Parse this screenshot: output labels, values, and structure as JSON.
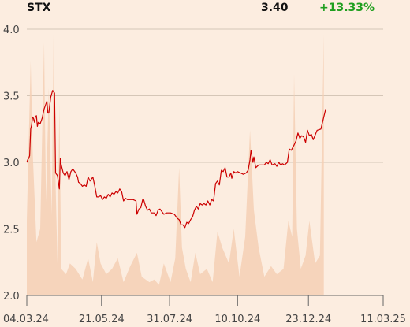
{
  "header": {
    "ticker": "STX",
    "last_price": "3.40",
    "change": "+13.33%"
  },
  "colors": {
    "background": "#fcede0",
    "price_line": "#cc0000",
    "volume_fill": "#f5cfb4",
    "grid": "#c8b8aa",
    "change_positive": "#1e9e1e"
  },
  "chart_data": {
    "type": "line",
    "title": "",
    "xlabel": "",
    "ylabel": "",
    "ylim": [
      2.0,
      4.0
    ],
    "yticks": [
      "4.0",
      "3.5",
      "3.0",
      "2.5",
      "2.0"
    ],
    "xlim": [
      "2024-03-04",
      "2025-03-11"
    ],
    "xticks": [
      {
        "date": "2024-03-04",
        "label": "04.03.24"
      },
      {
        "date": "2024-05-21",
        "label": "21.05.24"
      },
      {
        "date": "2024-07-31",
        "label": "31.07.24"
      },
      {
        "date": "2024-10-10",
        "label": "10.10.24"
      },
      {
        "date": "2024-12-23",
        "label": "23.12.24"
      },
      {
        "date": "2025-03-11",
        "label": "11.03.25"
      }
    ],
    "grid": true,
    "series": [
      {
        "kind": "price",
        "points": [
          [
            "2024-03-04",
            3.0
          ],
          [
            "2024-03-05",
            3.02
          ],
          [
            "2024-03-06",
            3.03
          ],
          [
            "2024-03-07",
            3.05
          ],
          [
            "2024-03-08",
            3.25
          ],
          [
            "2024-03-09",
            3.28
          ],
          [
            "2024-03-10",
            3.34
          ],
          [
            "2024-03-11",
            3.33
          ],
          [
            "2024-03-12",
            3.3
          ],
          [
            "2024-03-13",
            3.34
          ],
          [
            "2024-03-14",
            3.35
          ],
          [
            "2024-03-15",
            3.27
          ],
          [
            "2024-03-16",
            3.3
          ],
          [
            "2024-03-18",
            3.29
          ],
          [
            "2024-03-20",
            3.33
          ],
          [
            "2024-03-22",
            3.4
          ],
          [
            "2024-03-25",
            3.46
          ],
          [
            "2024-03-26",
            3.37
          ],
          [
            "2024-03-27",
            3.37
          ],
          [
            "2024-03-29",
            3.49
          ],
          [
            "2024-03-31",
            3.54
          ],
          [
            "2024-04-02",
            3.52
          ],
          [
            "2024-04-03",
            2.92
          ],
          [
            "2024-04-05",
            2.9
          ],
          [
            "2024-04-07",
            2.8
          ],
          [
            "2024-04-08",
            3.03
          ],
          [
            "2024-04-09",
            2.98
          ],
          [
            "2024-04-11",
            2.92
          ],
          [
            "2024-04-13",
            2.9
          ],
          [
            "2024-04-15",
            2.93
          ],
          [
            "2024-04-17",
            2.87
          ],
          [
            "2024-04-19",
            2.93
          ],
          [
            "2024-04-21",
            2.95
          ],
          [
            "2024-04-24",
            2.92
          ],
          [
            "2024-04-26",
            2.89
          ],
          [
            "2024-04-27",
            2.85
          ],
          [
            "2024-04-29",
            2.84
          ],
          [
            "2024-05-01",
            2.82
          ],
          [
            "2024-05-03",
            2.83
          ],
          [
            "2024-05-05",
            2.82
          ],
          [
            "2024-05-07",
            2.89
          ],
          [
            "2024-05-09",
            2.86
          ],
          [
            "2024-05-12",
            2.89
          ],
          [
            "2024-05-14",
            2.82
          ],
          [
            "2024-05-16",
            2.74
          ],
          [
            "2024-05-18",
            2.74
          ],
          [
            "2024-05-20",
            2.75
          ],
          [
            "2024-05-22",
            2.72
          ],
          [
            "2024-05-24",
            2.74
          ],
          [
            "2024-05-26",
            2.73
          ],
          [
            "2024-05-28",
            2.76
          ],
          [
            "2024-05-30",
            2.74
          ],
          [
            "2024-06-01",
            2.77
          ],
          [
            "2024-06-03",
            2.76
          ],
          [
            "2024-06-05",
            2.78
          ],
          [
            "2024-06-07",
            2.77
          ],
          [
            "2024-06-09",
            2.8
          ],
          [
            "2024-06-11",
            2.78
          ],
          [
            "2024-06-13",
            2.71
          ],
          [
            "2024-06-15",
            2.73
          ],
          [
            "2024-06-17",
            2.72
          ],
          [
            "2024-06-20",
            2.72
          ],
          [
            "2024-06-23",
            2.72
          ],
          [
            "2024-06-26",
            2.71
          ],
          [
            "2024-06-27",
            2.61
          ],
          [
            "2024-06-29",
            2.65
          ],
          [
            "2024-07-01",
            2.66
          ],
          [
            "2024-07-03",
            2.72
          ],
          [
            "2024-07-04",
            2.72
          ],
          [
            "2024-07-06",
            2.67
          ],
          [
            "2024-07-08",
            2.64
          ],
          [
            "2024-07-10",
            2.65
          ],
          [
            "2024-07-12",
            2.62
          ],
          [
            "2024-07-15",
            2.62
          ],
          [
            "2024-07-17",
            2.6
          ],
          [
            "2024-07-19",
            2.64
          ],
          [
            "2024-07-21",
            2.65
          ],
          [
            "2024-07-23",
            2.63
          ],
          [
            "2024-07-25",
            2.61
          ],
          [
            "2024-07-28",
            2.62
          ],
          [
            "2024-08-01",
            2.62
          ],
          [
            "2024-08-05",
            2.61
          ],
          [
            "2024-08-08",
            2.58
          ],
          [
            "2024-08-10",
            2.57
          ],
          [
            "2024-08-12",
            2.53
          ],
          [
            "2024-08-14",
            2.53
          ],
          [
            "2024-08-16",
            2.51
          ],
          [
            "2024-08-18",
            2.55
          ],
          [
            "2024-08-20",
            2.54
          ],
          [
            "2024-08-22",
            2.57
          ],
          [
            "2024-08-24",
            2.59
          ],
          [
            "2024-08-26",
            2.64
          ],
          [
            "2024-08-28",
            2.67
          ],
          [
            "2024-08-30",
            2.65
          ],
          [
            "2024-09-01",
            2.69
          ],
          [
            "2024-09-03",
            2.68
          ],
          [
            "2024-09-05",
            2.69
          ],
          [
            "2024-09-07",
            2.68
          ],
          [
            "2024-09-09",
            2.71
          ],
          [
            "2024-09-11",
            2.68
          ],
          [
            "2024-09-13",
            2.72
          ],
          [
            "2024-09-15",
            2.71
          ],
          [
            "2024-09-17",
            2.84
          ],
          [
            "2024-09-19",
            2.86
          ],
          [
            "2024-09-21",
            2.83
          ],
          [
            "2024-09-23",
            2.94
          ],
          [
            "2024-09-25",
            2.93
          ],
          [
            "2024-09-27",
            2.96
          ],
          [
            "2024-09-29",
            2.89
          ],
          [
            "2024-10-01",
            2.89
          ],
          [
            "2024-10-03",
            2.92
          ],
          [
            "2024-10-04",
            2.88
          ],
          [
            "2024-10-06",
            2.93
          ],
          [
            "2024-10-08",
            2.92
          ],
          [
            "2024-10-10",
            2.93
          ],
          [
            "2024-10-13",
            2.92
          ],
          [
            "2024-10-16",
            2.91
          ],
          [
            "2024-10-19",
            2.92
          ],
          [
            "2024-10-21",
            2.94
          ],
          [
            "2024-10-23",
            3.02
          ],
          [
            "2024-10-24",
            3.09
          ],
          [
            "2024-10-26",
            3.0
          ],
          [
            "2024-10-27",
            3.04
          ],
          [
            "2024-10-29",
            2.96
          ],
          [
            "2024-11-01",
            2.98
          ],
          [
            "2024-11-04",
            2.98
          ],
          [
            "2024-11-07",
            2.98
          ],
          [
            "2024-11-09",
            3.0
          ],
          [
            "2024-11-11",
            2.99
          ],
          [
            "2024-11-13",
            3.02
          ],
          [
            "2024-11-15",
            2.98
          ],
          [
            "2024-11-18",
            2.99
          ],
          [
            "2024-11-20",
            2.97
          ],
          [
            "2024-11-22",
            3.0
          ],
          [
            "2024-11-24",
            2.98
          ],
          [
            "2024-11-26",
            2.99
          ],
          [
            "2024-11-28",
            2.98
          ],
          [
            "2024-12-01",
            3.0
          ],
          [
            "2024-12-03",
            3.1
          ],
          [
            "2024-12-05",
            3.09
          ],
          [
            "2024-12-08",
            3.13
          ],
          [
            "2024-12-10",
            3.16
          ],
          [
            "2024-12-12",
            3.22
          ],
          [
            "2024-12-14",
            3.18
          ],
          [
            "2024-12-16",
            3.2
          ],
          [
            "2024-12-18",
            3.19
          ],
          [
            "2024-12-20",
            3.15
          ],
          [
            "2024-12-22",
            3.24
          ],
          [
            "2024-12-24",
            3.2
          ],
          [
            "2024-12-26",
            3.21
          ],
          [
            "2024-12-28",
            3.17
          ],
          [
            "2025-01-01",
            3.24
          ],
          [
            "2025-01-05",
            3.25
          ],
          [
            "2025-01-10",
            3.4
          ]
        ]
      },
      {
        "kind": "volume",
        "points": [
          [
            "2024-03-04",
            0.28
          ],
          [
            "2024-03-08",
            0.88
          ],
          [
            "2024-03-10",
            0.55
          ],
          [
            "2024-03-14",
            0.2
          ],
          [
            "2024-03-18",
            0.25
          ],
          [
            "2024-03-22",
            0.95
          ],
          [
            "2024-03-24",
            0.35
          ],
          [
            "2024-03-27",
            0.78
          ],
          [
            "2024-03-30",
            0.3
          ],
          [
            "2024-04-01",
            0.98
          ],
          [
            "2024-04-03",
            0.42
          ],
          [
            "2024-04-05",
            0.12
          ],
          [
            "2024-04-07",
            0.72
          ],
          [
            "2024-04-09",
            0.1
          ],
          [
            "2024-04-14",
            0.08
          ],
          [
            "2024-04-18",
            0.12
          ],
          [
            "2024-04-24",
            0.1
          ],
          [
            "2024-05-01",
            0.06
          ],
          [
            "2024-05-07",
            0.14
          ],
          [
            "2024-05-12",
            0.05
          ],
          [
            "2024-05-16",
            0.2
          ],
          [
            "2024-05-20",
            0.12
          ],
          [
            "2024-05-26",
            0.08
          ],
          [
            "2024-06-01",
            0.1
          ],
          [
            "2024-06-07",
            0.14
          ],
          [
            "2024-06-13",
            0.05
          ],
          [
            "2024-06-20",
            0.11
          ],
          [
            "2024-06-27",
            0.16
          ],
          [
            "2024-07-02",
            0.07
          ],
          [
            "2024-07-10",
            0.05
          ],
          [
            "2024-07-15",
            0.06
          ],
          [
            "2024-07-20",
            0.04
          ],
          [
            "2024-07-25",
            0.12
          ],
          [
            "2024-08-01",
            0.05
          ],
          [
            "2024-08-06",
            0.14
          ],
          [
            "2024-08-10",
            0.48
          ],
          [
            "2024-08-13",
            0.18
          ],
          [
            "2024-08-17",
            0.1
          ],
          [
            "2024-08-22",
            0.05
          ],
          [
            "2024-08-27",
            0.16
          ],
          [
            "2024-09-01",
            0.08
          ],
          [
            "2024-09-08",
            0.1
          ],
          [
            "2024-09-14",
            0.05
          ],
          [
            "2024-09-19",
            0.24
          ],
          [
            "2024-09-24",
            0.18
          ],
          [
            "2024-10-01",
            0.12
          ],
          [
            "2024-10-06",
            0.25
          ],
          [
            "2024-10-12",
            0.07
          ],
          [
            "2024-10-18",
            0.22
          ],
          [
            "2024-10-23",
            0.62
          ],
          [
            "2024-10-27",
            0.32
          ],
          [
            "2024-11-01",
            0.18
          ],
          [
            "2024-11-07",
            0.07
          ],
          [
            "2024-11-14",
            0.11
          ],
          [
            "2024-11-20",
            0.08
          ],
          [
            "2024-11-27",
            0.1
          ],
          [
            "2024-12-02",
            0.28
          ],
          [
            "2024-12-06",
            0.22
          ],
          [
            "2024-12-08",
            0.83
          ],
          [
            "2024-12-11",
            0.25
          ],
          [
            "2024-12-15",
            0.1
          ],
          [
            "2024-12-20",
            0.15
          ],
          [
            "2024-12-24",
            0.28
          ],
          [
            "2024-12-30",
            0.12
          ],
          [
            "2025-01-04",
            0.15
          ],
          [
            "2025-01-08",
            0.98
          ]
        ]
      }
    ]
  }
}
